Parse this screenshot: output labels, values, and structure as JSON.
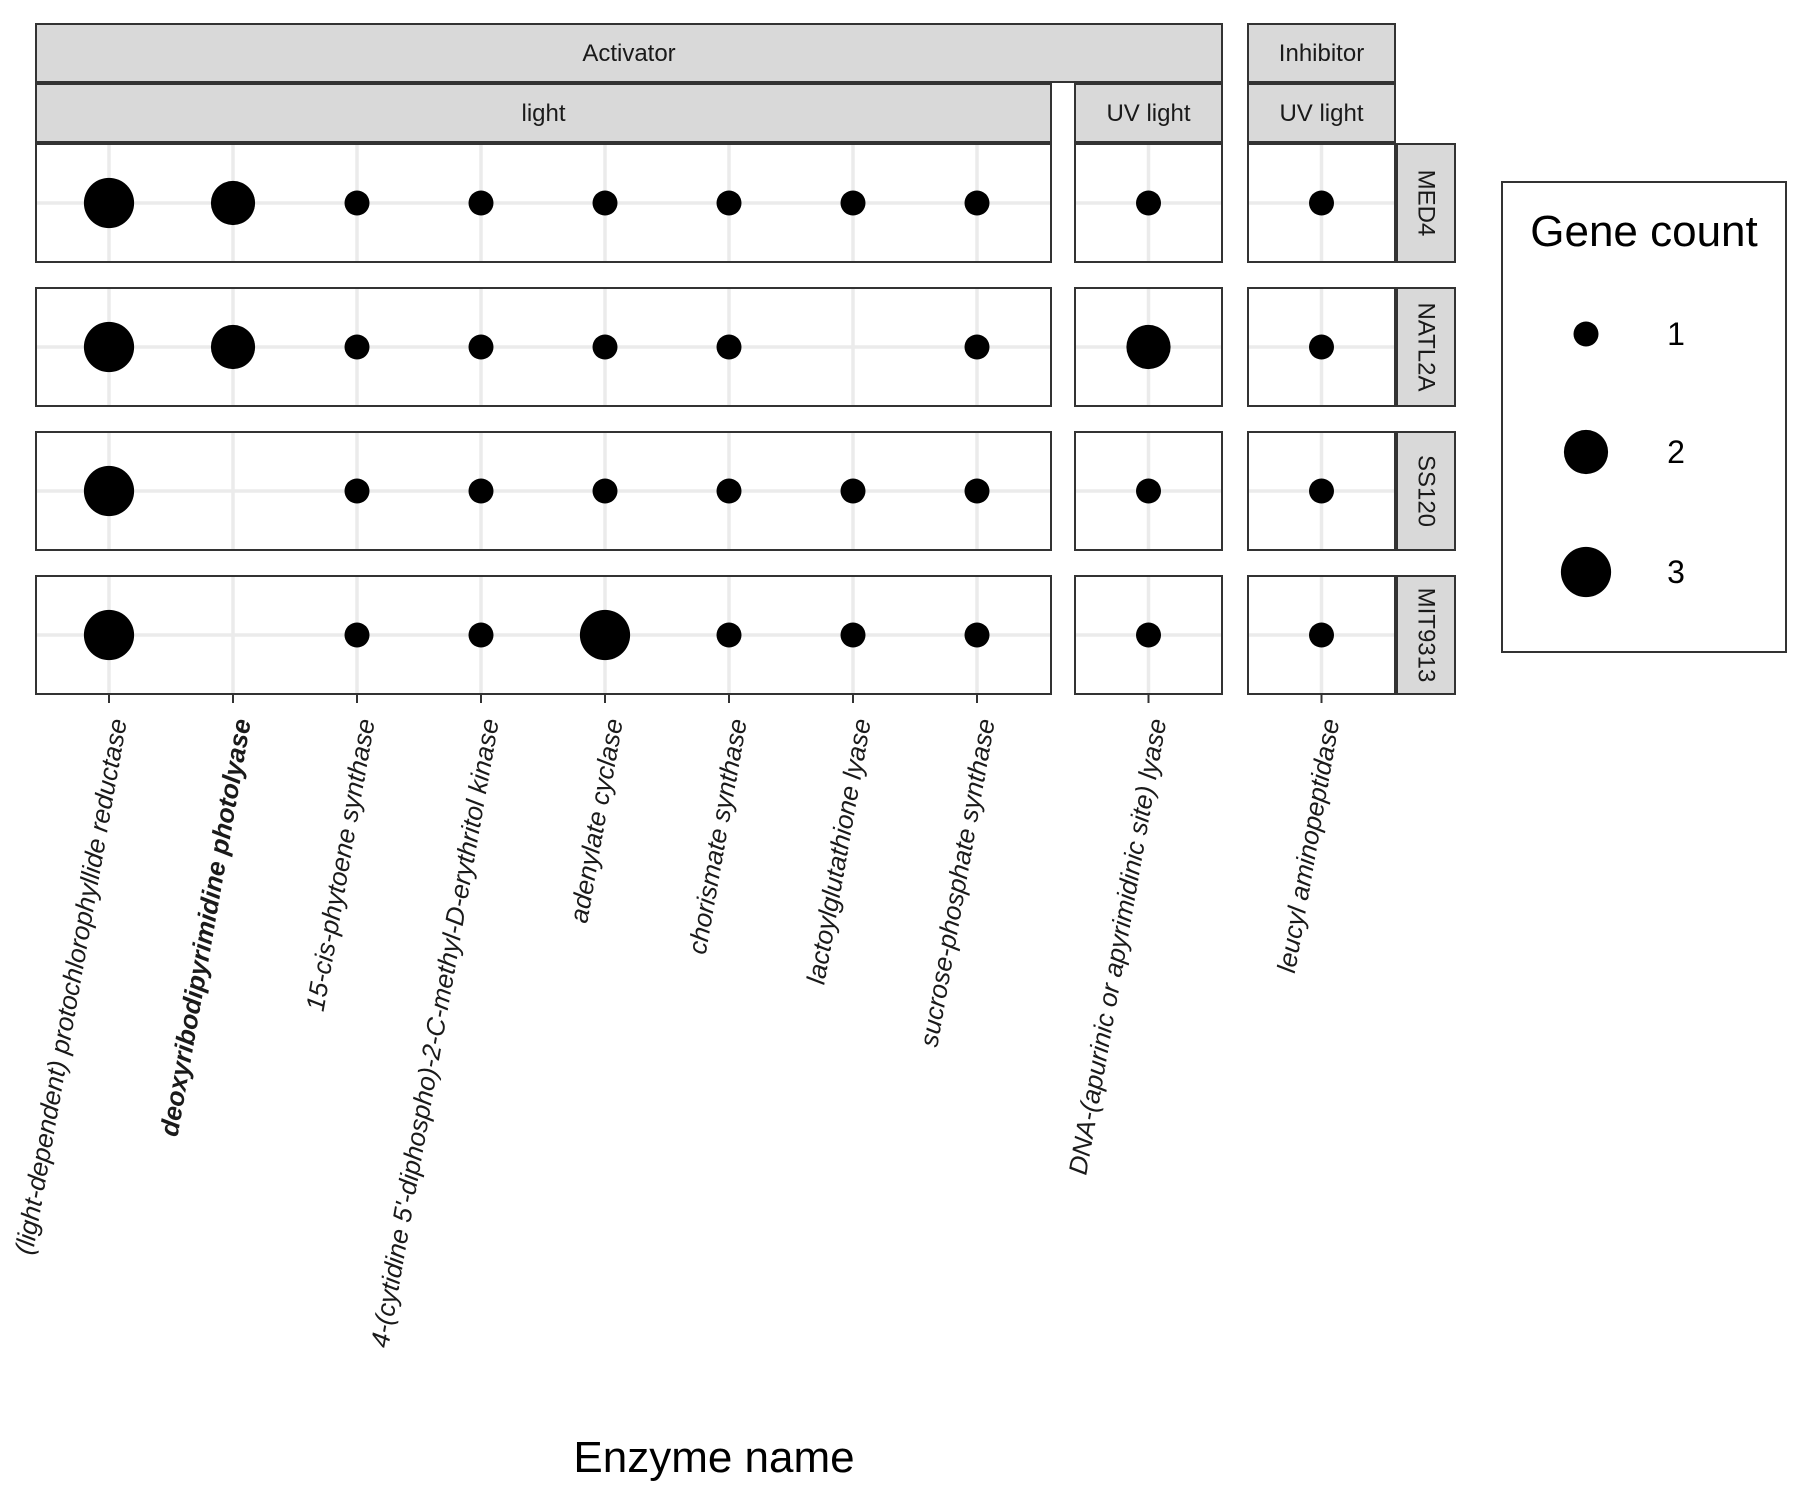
{
  "chart_data": {
    "type": "scatter",
    "xlabel": "Enzyme name",
    "ylabel": "",
    "facet_cols": [
      {
        "group": "Activator",
        "subgroup": "light",
        "enzymes": [
          {
            "name": "(light-dependent) protochlorophyllide reductase",
            "bold": false
          },
          {
            "name": "deoxyribodipyrimidine photolyase",
            "bold": true
          },
          {
            "name": "15-cis-phytoene synthase",
            "bold": false
          },
          {
            "name": "4-(cytidine 5'-diphospho)-2-C-methyl-D-erythritol kinase",
            "bold": false
          },
          {
            "name": "adenylate cyclase",
            "bold": false
          },
          {
            "name": "chorismate synthase",
            "bold": false
          },
          {
            "name": "lactoylglutathione lyase",
            "bold": false
          },
          {
            "name": "sucrose-phosphate synthase",
            "bold": false
          }
        ]
      },
      {
        "group": "Activator",
        "subgroup": "UV light",
        "enzymes": [
          {
            "name": "DNA-(apurinic or apyrimidinic site) lyase",
            "bold": false
          }
        ]
      },
      {
        "group": "Inhibitor",
        "subgroup": "UV light",
        "enzymes": [
          {
            "name": "leucyl aminopeptidase",
            "bold": false
          }
        ]
      }
    ],
    "group_labels": [
      "Activator",
      "Inhibitor"
    ],
    "strains": [
      "MED4",
      "NATL2A",
      "SS120",
      "MIT9313"
    ],
    "series": [
      {
        "strain": "MED4",
        "counts": [
          [
            3,
            2,
            1,
            1,
            1,
            1,
            1,
            1
          ],
          [
            1
          ],
          [
            1
          ]
        ]
      },
      {
        "strain": "NATL2A",
        "counts": [
          [
            3,
            2,
            1,
            1,
            1,
            1,
            0,
            1
          ],
          [
            2
          ],
          [
            1
          ]
        ]
      },
      {
        "strain": "SS120",
        "counts": [
          [
            3,
            0,
            1,
            1,
            1,
            1,
            1,
            1
          ],
          [
            1
          ],
          [
            1
          ]
        ]
      },
      {
        "strain": "MIT9313",
        "counts": [
          [
            3,
            0,
            1,
            1,
            3,
            1,
            1,
            1
          ],
          [
            1
          ],
          [
            1
          ]
        ]
      }
    ],
    "legend": {
      "title": "Gene count",
      "values": [
        1,
        2,
        3
      ],
      "labels": [
        "1",
        "2",
        "3"
      ],
      "position": "right"
    },
    "grid": true
  }
}
